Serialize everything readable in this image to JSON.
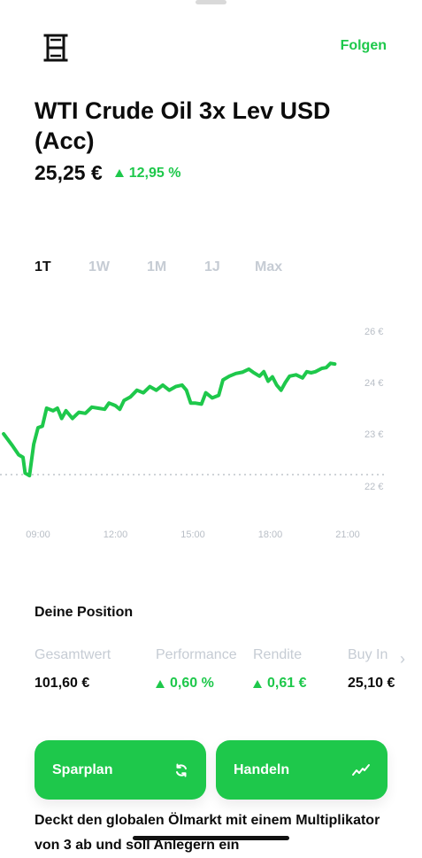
{
  "header": {
    "follow_label": "Folgen",
    "icon": "oil-barrel-icon"
  },
  "instrument": {
    "title": "WTI Crude Oil 3x Lev USD (Acc)",
    "price": "25,25 €",
    "change": "12,95 %"
  },
  "range_tabs": [
    "1T",
    "1W",
    "1M",
    "1J",
    "Max"
  ],
  "range_selected": "1T",
  "colors": {
    "accent": "#1ec84b",
    "muted": "#c6ccd4",
    "text": "#0c0c0c"
  },
  "chart_data": {
    "type": "line",
    "title": "",
    "xlabel": "",
    "ylabel": "",
    "x_tick_labels": [
      "09:00",
      "12:00",
      "15:00",
      "18:00",
      "21:00"
    ],
    "y_tick_labels": [
      "26 €",
      "24 €",
      "23 €",
      "22 €"
    ],
    "baseline": 22.22,
    "baseline_style": "dotted",
    "points": [
      [
        "07:40",
        23.0
      ],
      [
        "08:00",
        22.78
      ],
      [
        "08:15",
        22.6
      ],
      [
        "08:25",
        22.55
      ],
      [
        "08:30",
        22.25
      ],
      [
        "08:40",
        22.2
      ],
      [
        "08:50",
        22.8
      ],
      [
        "09:00",
        23.12
      ],
      [
        "09:10",
        23.15
      ],
      [
        "09:20",
        23.5
      ],
      [
        "09:35",
        23.45
      ],
      [
        "09:45",
        23.5
      ],
      [
        "09:55",
        23.3
      ],
      [
        "10:05",
        23.45
      ],
      [
        "10:20",
        23.3
      ],
      [
        "10:35",
        23.42
      ],
      [
        "10:50",
        23.4
      ],
      [
        "11:05",
        23.52
      ],
      [
        "11:20",
        23.5
      ],
      [
        "11:35",
        23.48
      ],
      [
        "11:45",
        23.6
      ],
      [
        "12:00",
        23.55
      ],
      [
        "12:10",
        23.48
      ],
      [
        "12:20",
        23.65
      ],
      [
        "12:35",
        23.72
      ],
      [
        "12:50",
        23.85
      ],
      [
        "13:05",
        23.8
      ],
      [
        "13:20",
        23.92
      ],
      [
        "13:35",
        23.85
      ],
      [
        "13:50",
        23.95
      ],
      [
        "14:05",
        23.85
      ],
      [
        "14:20",
        23.92
      ],
      [
        "14:35",
        23.95
      ],
      [
        "14:45",
        23.85
      ],
      [
        "14:55",
        23.6
      ],
      [
        "15:05",
        23.6
      ],
      [
        "15:20",
        23.58
      ],
      [
        "15:30",
        23.8
      ],
      [
        "15:45",
        23.7
      ],
      [
        "16:00",
        23.75
      ],
      [
        "16:10",
        24.1
      ],
      [
        "16:25",
        24.25
      ],
      [
        "16:40",
        24.35
      ],
      [
        "16:55",
        24.4
      ],
      [
        "17:10",
        24.52
      ],
      [
        "17:20",
        24.4
      ],
      [
        "17:35",
        24.25
      ],
      [
        "17:45",
        24.42
      ],
      [
        "17:55",
        24.05
      ],
      [
        "18:05",
        24.22
      ],
      [
        "18:15",
        23.95
      ],
      [
        "18:25",
        23.85
      ],
      [
        "18:35",
        24.0
      ],
      [
        "18:45",
        24.25
      ],
      [
        "19:00",
        24.3
      ],
      [
        "19:15",
        24.18
      ],
      [
        "19:25",
        24.42
      ],
      [
        "19:35",
        24.38
      ],
      [
        "19:45",
        24.42
      ],
      [
        "20:00",
        24.55
      ],
      [
        "20:10",
        24.58
      ],
      [
        "20:20",
        24.75
      ],
      [
        "20:30",
        24.72
      ]
    ]
  },
  "position": {
    "title": "Deine Position",
    "stats": [
      {
        "label": "Gesamtwert",
        "value": "101,60 €",
        "up": false
      },
      {
        "label": "Performance",
        "value": "0,60 %",
        "up": true
      },
      {
        "label": "Rendite",
        "value": "0,61 €",
        "up": true
      },
      {
        "label": "Buy In",
        "value": "25,10 €",
        "up": false
      }
    ]
  },
  "actions": {
    "sparplan_label": "Sparplan",
    "sparplan_icon": "refresh-icon",
    "handeln_label": "Handeln",
    "handeln_icon": "trend-line-icon"
  },
  "description": "Deckt den globalen Ölmarkt mit einem Multiplikator von 3 ab und soll Anlegern ein"
}
